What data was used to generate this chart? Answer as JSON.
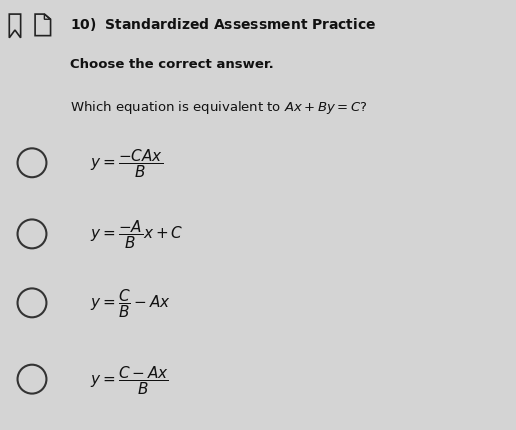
{
  "bg_color": "#d4d4d4",
  "title_line": "10) Standardized Assessment Practice",
  "subtitle": "Choose the correct answer.",
  "question": "Which equation is equivalent to $\\mathit{Ax} + \\mathit{By} = \\mathit{C}$?",
  "options": [
    "$y = \\dfrac{-C\\mathit{Ax}}{\\mathit{B}}$",
    "$y = \\dfrac{-\\mathit{A}}{\\mathit{B}}\\mathit{x} + \\mathit{C}$",
    "$y = \\dfrac{\\mathit{C}}{\\mathit{B}} - \\mathit{Ax}$",
    "$y = \\dfrac{\\mathit{C} - \\mathit{Ax}}{\\mathit{B}}$"
  ],
  "title_fontsize": 10,
  "subtitle_fontsize": 9.5,
  "question_fontsize": 9.5,
  "option_fontsize": 11
}
